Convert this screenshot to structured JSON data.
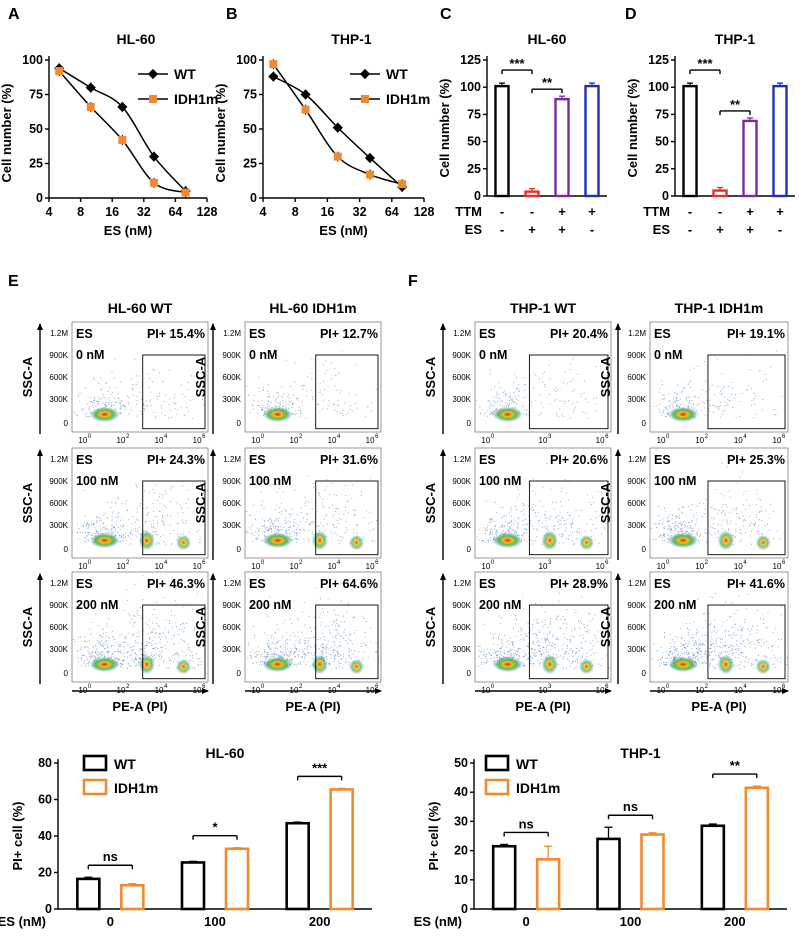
{
  "colors": {
    "wt": "#000000",
    "idh1m": "#F08A30",
    "ctrl": "#000000",
    "es": "#E8302A",
    "ttm_es": "#7A2A9E",
    "ttm": "#1E2FB0"
  },
  "panel_labels": [
    "A",
    "B",
    "C",
    "D",
    "E",
    "F"
  ],
  "curve_panels": {
    "y_label": "Cell number (%)",
    "x_label": "ES (nM)",
    "x_ticks": [
      "4",
      "8",
      "16",
      "32",
      "64",
      "128"
    ],
    "y_ticks": [
      "0",
      "25",
      "50",
      "75",
      "100"
    ],
    "legend": [
      "WT",
      "IDH1m"
    ]
  },
  "bar_panels": {
    "y_label": "Cell number (%)",
    "y_ticks": [
      "0",
      "25",
      "50",
      "75",
      "100",
      "125"
    ],
    "row_labels": [
      "TTM",
      "ES"
    ],
    "ttm_signs": [
      "-",
      "-",
      "+",
      "+"
    ],
    "es_signs": [
      "-",
      "+",
      "+",
      "-"
    ]
  },
  "flow": {
    "panel_E": {
      "col_titles": [
        "HL-60 WT",
        "HL-60 IDH1m"
      ]
    },
    "panel_F": {
      "col_titles": [
        "THP-1 WT",
        "THP-1 IDH1m"
      ]
    },
    "y_axis": "SSC-A",
    "x_axis": "PE-A (PI)",
    "y_ticks": [
      "1.2M",
      "900K",
      "600K",
      "300K",
      "0"
    ],
    "x_ticks": [
      "10",
      "10",
      "10",
      "10"
    ],
    "x_exps": [
      "0",
      "2",
      "4",
      "6"
    ],
    "x_ticks_f_wt": [
      "10",
      "10",
      "10"
    ],
    "x_exps_f_wt": [
      "0",
      "3",
      "6"
    ],
    "es_label": "ES",
    "doses": [
      "0 nM",
      "100 nM",
      "200 nM"
    ],
    "pi": {
      "e_wt": [
        "PI+ 15.4%",
        "PI+ 24.3%",
        "PI+ 46.3%"
      ],
      "e_idh": [
        "PI+ 12.7%",
        "PI+ 31.6%",
        "PI+ 64.6%"
      ],
      "f_wt": [
        "PI+ 20.4%",
        "PI+ 20.6%",
        "PI+ 28.9%"
      ],
      "f_idh": [
        "PI+ 19.1%",
        "PI+ 25.3%",
        "PI+ 41.6%"
      ]
    }
  },
  "pi_panels": {
    "y_label": "PI+ cell (%)",
    "x_row_label": "ES (nM)",
    "legend": [
      "WT",
      "IDH1m"
    ]
  },
  "chart_data": [
    {
      "type": "line",
      "panel": "A",
      "title": "HL-60",
      "xlabel": "ES (nM)",
      "ylabel": "Cell number (%)",
      "x_scale": "log2",
      "xlim": [
        4,
        128
      ],
      "ylim": [
        0,
        100
      ],
      "series": [
        {
          "name": "WT",
          "x": [
            5,
            10,
            20,
            40,
            80
          ],
          "y": [
            94,
            80,
            66,
            30,
            5
          ]
        },
        {
          "name": "IDH1m",
          "x": [
            5,
            10,
            20,
            40,
            80
          ],
          "y": [
            92,
            66,
            42,
            11,
            4
          ]
        }
      ]
    },
    {
      "type": "line",
      "panel": "B",
      "title": "THP-1",
      "xlabel": "ES (nM)",
      "ylabel": "Cell number (%)",
      "x_scale": "log2",
      "xlim": [
        4,
        128
      ],
      "ylim": [
        0,
        100
      ],
      "series": [
        {
          "name": "WT",
          "x": [
            5,
            10,
            20,
            40,
            80
          ],
          "y": [
            88,
            75,
            51,
            29,
            8
          ]
        },
        {
          "name": "IDH1m",
          "x": [
            5,
            10,
            20,
            40,
            80
          ],
          "y": [
            97,
            64,
            30,
            17,
            10
          ]
        }
      ]
    },
    {
      "type": "bar",
      "panel": "C",
      "title": "HL-60",
      "ylabel": "Cell number (%)",
      "ylim": [
        0,
        125
      ],
      "categories": [
        "-/-",
        "-/+",
        "+/+",
        "+/-"
      ],
      "values": [
        101,
        4,
        89,
        101
      ],
      "significance": [
        {
          "bars": [
            0,
            1
          ],
          "label": "***"
        },
        {
          "bars": [
            1,
            2
          ],
          "label": "**"
        }
      ]
    },
    {
      "type": "bar",
      "panel": "D",
      "title": "THP-1",
      "ylabel": "Cell number (%)",
      "ylim": [
        0,
        125
      ],
      "categories": [
        "-/-",
        "-/+",
        "+/+",
        "+/-"
      ],
      "values": [
        101,
        5,
        69,
        101
      ],
      "significance": [
        {
          "bars": [
            0,
            1
          ],
          "label": "***"
        },
        {
          "bars": [
            1,
            2
          ],
          "label": "**"
        }
      ]
    },
    {
      "type": "bar",
      "panel": "E-quant",
      "title": "HL-60",
      "xlabel": "ES (nM)",
      "ylabel": "PI+ cell (%)",
      "ylim": [
        0,
        80
      ],
      "categories": [
        "0",
        "100",
        "200"
      ],
      "series": [
        {
          "name": "WT",
          "values": [
            16.5,
            25.5,
            47
          ]
        },
        {
          "name": "IDH1m",
          "values": [
            13,
            33,
            65.5
          ]
        }
      ],
      "significance": [
        "ns",
        "*",
        "***"
      ]
    },
    {
      "type": "bar",
      "panel": "F-quant",
      "title": "THP-1",
      "xlabel": "ES (nM)",
      "ylabel": "PI+ cell (%)",
      "ylim": [
        0,
        50
      ],
      "categories": [
        "0",
        "100",
        "200"
      ],
      "series": [
        {
          "name": "WT",
          "values": [
            21.5,
            24,
            28.5
          ]
        },
        {
          "name": "IDH1m",
          "values": [
            17,
            25.5,
            41.5
          ]
        }
      ],
      "significance": [
        "ns",
        "ns",
        "**"
      ]
    }
  ]
}
